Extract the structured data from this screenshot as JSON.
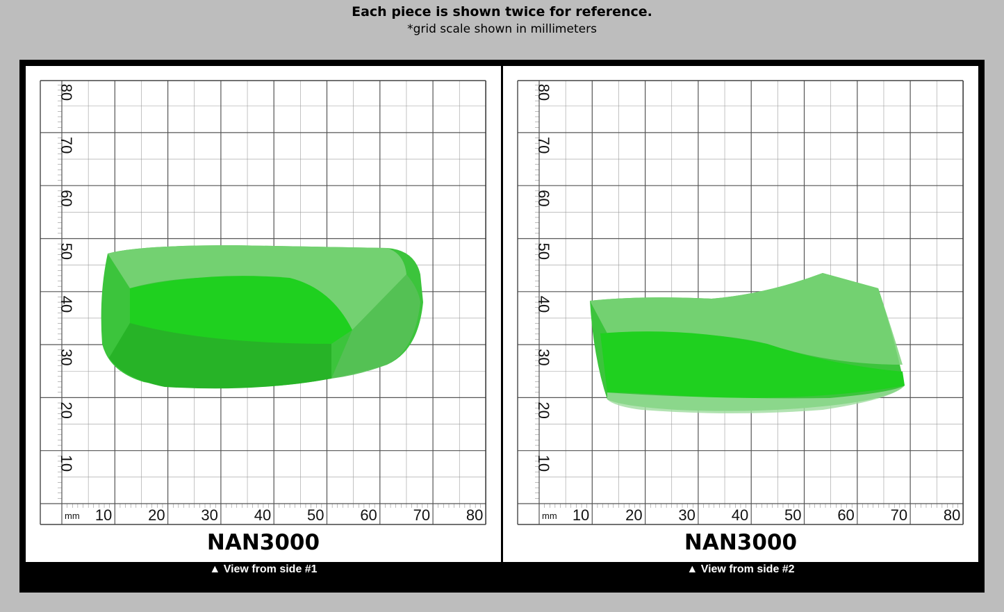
{
  "header": {
    "title": "Each piece is shown twice for reference.",
    "subtitle": "*grid scale shown in millimeters"
  },
  "grid": {
    "unit_label": "mm",
    "x_ticks": [
      "10",
      "20",
      "30",
      "40",
      "50",
      "60",
      "70",
      "80"
    ],
    "y_ticks": [
      "10",
      "20",
      "30",
      "40",
      "50",
      "60",
      "70",
      "80"
    ]
  },
  "panels": [
    {
      "code": "NAN3000",
      "caption": "▲ View from side #1"
    },
    {
      "code": "NAN3000",
      "caption": "▲ View from side #2"
    }
  ],
  "colors": {
    "background": "#bdbdbd",
    "frame": "#000000",
    "stone_green": "#3cc43c",
    "stone_dark": "#22a822",
    "grid_line": "#555555"
  }
}
